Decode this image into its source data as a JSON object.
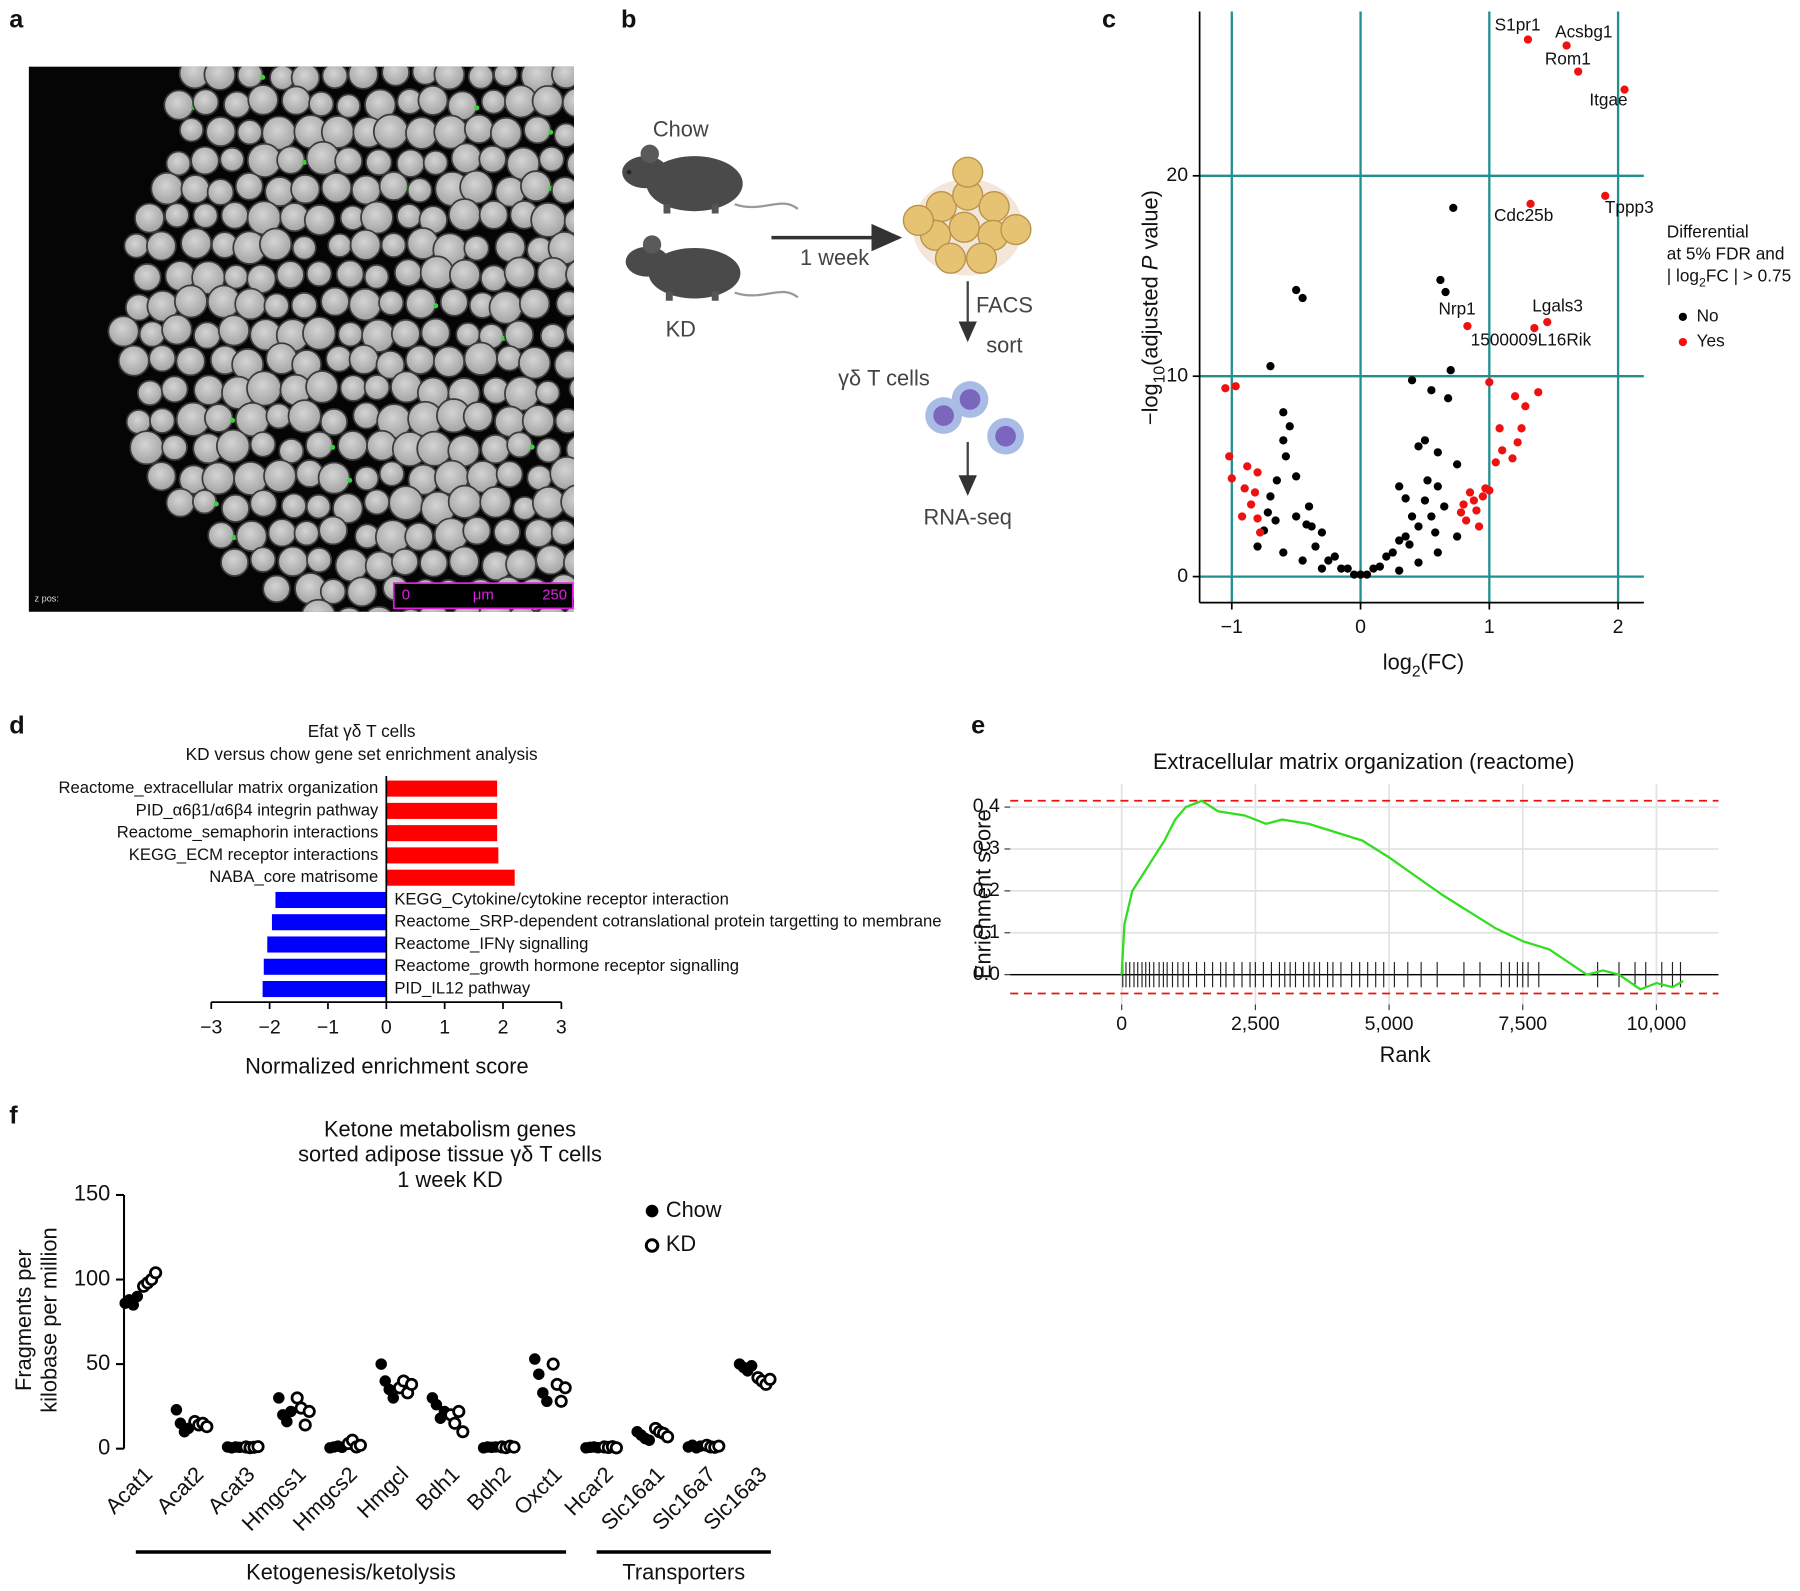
{
  "panel_labels": [
    "a",
    "b",
    "c",
    "d",
    "e",
    "f"
  ],
  "panel_a": {
    "scale_bar": [
      "0",
      "μm",
      "250"
    ],
    "z_pos": "z pos:"
  },
  "panel_b": {
    "groups": [
      "Chow",
      "KD"
    ],
    "duration": "1 week",
    "step": [
      "FACS",
      "sort"
    ],
    "cells": "γδ T cells",
    "readout": "RNA-seq"
  },
  "chart_data": [
    {
      "type": "scatter",
      "x_label": [
        "log",
        "2",
        "(FC)"
      ],
      "y_label": [
        "−log",
        "10",
        "(adjusted ",
        "P",
        " value)"
      ],
      "xlim": [
        -1.25,
        2.2
      ],
      "ylim": [
        -1.3,
        28.2
      ],
      "xticks": [
        {
          "value": -1,
          "label": "−1"
        },
        0,
        1,
        2
      ],
      "yticks": [
        0,
        10,
        20
      ],
      "grid": true,
      "grid_color": "#1f8f8f",
      "legend_title": [
        "Differential",
        "at 5% FDR and"
      ],
      "legend_title_math": [
        "| log",
        "2",
        "FC | > 0.75"
      ],
      "legend_position": "right",
      "series": [
        {
          "name": "No",
          "color": "#000000",
          "x": [
            -0.5,
            -0.45,
            -0.7,
            -0.6,
            -0.55,
            -0.6,
            -0.58,
            -0.5,
            -0.65,
            -0.7,
            -0.4,
            -0.3,
            -0.2,
            -0.1,
            0,
            0.1,
            0.2,
            0.3,
            0.4,
            0.5,
            0.6,
            -0.35,
            -0.25,
            -0.15,
            -0.05,
            0.05,
            0.15,
            0.25,
            0.35,
            0.45,
            0.55,
            0.65,
            0.72,
            0.62,
            0.66,
            0.7,
            0.68,
            0.55,
            0.4,
            0.45,
            0.5,
            0.3,
            0.35,
            0.6,
            0.52,
            0.75,
            -0.72,
            -0.5,
            -0.42,
            -0.38,
            0.38,
            0.58,
            -0.75,
            -0.66,
            -0.8,
            -0.6,
            -0.45,
            -0.3,
            0.3,
            0.45,
            0.6,
            0.75
          ],
          "y": [
            14.3,
            13.9,
            10.5,
            8.2,
            7.5,
            6.8,
            6,
            5,
            4.8,
            4,
            3.5,
            2.2,
            1,
            0.4,
            0.1,
            0.4,
            1,
            1.8,
            3,
            3.8,
            4.5,
            1.5,
            0.8,
            0.4,
            0.1,
            0.1,
            0.5,
            1.2,
            2,
            2.5,
            3,
            3.5,
            18.4,
            14.8,
            14.2,
            10.3,
            8.9,
            9.3,
            9.8,
            6.5,
            6.8,
            4.5,
            3.9,
            6.2,
            4.8,
            5.6,
            3.2,
            3,
            2.6,
            2.5,
            1.6,
            2.2,
            2.3,
            2.8,
            1.5,
            1.2,
            0.8,
            0.4,
            0.3,
            0.7,
            1.2,
            2
          ]
        },
        {
          "name": "Yes",
          "color": "#ee1111",
          "x": [
            -1.05,
            -0.97,
            -1.02,
            -1.0,
            -0.9,
            -0.85,
            -0.8,
            -0.78,
            -0.8,
            -0.92,
            -0.88,
            -0.82,
            0.8,
            0.85,
            0.9,
            0.95,
            1.0,
            0.82,
            0.88,
            1.05,
            1.1,
            1.08,
            1.0,
            1.2,
            1.28,
            1.38,
            1.25,
            1.22,
            1.18,
            0.92,
            0.78,
            0.97,
            1.3,
            1.6,
            1.69,
            2.05,
            1.32,
            1.9,
            0.83,
            1.45,
            1.35
          ],
          "y": [
            9.4,
            9.5,
            6,
            4.9,
            4.4,
            3.6,
            2.9,
            2.2,
            5.2,
            3,
            5.5,
            4.2,
            3.6,
            4.2,
            3.3,
            4,
            4.3,
            2.8,
            3.8,
            5.7,
            6.3,
            7.4,
            9.7,
            9,
            8.5,
            9.2,
            7.4,
            6.7,
            5.9,
            2.5,
            3.2,
            4.4,
            26.8,
            26.5,
            25.2,
            24.3,
            18.6,
            19,
            12.5,
            12.7,
            12.4
          ],
          "labels": [
            null,
            null,
            null,
            null,
            null,
            null,
            null,
            null,
            null,
            null,
            null,
            null,
            null,
            null,
            null,
            null,
            null,
            null,
            null,
            null,
            null,
            null,
            null,
            null,
            null,
            null,
            null,
            null,
            null,
            null,
            null,
            null,
            "S1pr1",
            "Acsbg1",
            "Rom1",
            "Itgae",
            "Cdc25b",
            "Tppp3",
            "Nrp1",
            "Lgals3",
            "1500009L16Rik"
          ]
        }
      ]
    },
    {
      "type": "barh",
      "title": [
        "Efat γδ T cells",
        "KD versus chow gene set enrichment analysis"
      ],
      "categories": [
        "Reactome_extracellular matrix organization",
        "PID_α6β1/α6β4 integrin pathway",
        "Reactome_semaphorin interactions",
        "KEGG_ECM receptor interactions",
        "NABA_core matrisome",
        "KEGG_Cytokine/cytokine receptor interaction",
        "Reactome_SRP-dependent cotranslational protein targetting to membrane",
        "Reactome_IFNγ signalling",
        "Reactome_growth hormone receptor signalling",
        "PID_IL12 pathway"
      ],
      "values": [
        1.9,
        1.9,
        1.9,
        1.92,
        2.2,
        -1.9,
        -1.96,
        -2.04,
        -2.1,
        -2.12
      ],
      "colors": {
        "positive": "#ff0000",
        "negative": "#0000ff"
      },
      "xlim": [
        -3,
        3
      ],
      "xticks": [
        {
          "value": -3,
          "label": "−3"
        },
        {
          "value": -2,
          "label": "−2"
        },
        {
          "value": -1,
          "label": "−1"
        },
        0,
        1,
        2,
        3
      ],
      "x_label": "Normalized enrichment score"
    },
    {
      "type": "line",
      "title": "Extracellular matrix organization (reactome)",
      "x_label": "Rank",
      "y_label": "Enrichment score",
      "x": [
        0,
        50,
        200,
        500,
        800,
        1000,
        1200,
        1500,
        1800,
        2300,
        2700,
        3000,
        3500,
        4000,
        4500,
        5000,
        6000,
        7000,
        7500,
        8000,
        8700,
        9000,
        9300,
        9700,
        10000,
        10300,
        10500
      ],
      "values": [
        0,
        0.12,
        0.2,
        0.26,
        0.32,
        0.37,
        0.4,
        0.415,
        0.39,
        0.38,
        0.36,
        0.37,
        0.36,
        0.34,
        0.32,
        0.28,
        0.19,
        0.11,
        0.08,
        0.06,
        0,
        0.01,
        0,
        -0.035,
        -0.02,
        -0.03,
        -0.015
      ],
      "color": "#33dd22",
      "xlim": [
        -2085,
        11160
      ],
      "ylim": [
        -0.071,
        0.455
      ],
      "xticks": [
        0,
        {
          "value": 2500,
          "label": "2,500"
        },
        {
          "value": 5000,
          "label": "5,000"
        },
        {
          "value": 7500,
          "label": "7,500"
        },
        {
          "value": 10000,
          "label": "10,000"
        }
      ],
      "yticks": [
        {
          "value": 0,
          "label": "0.0"
        },
        0.1,
        0.2,
        0.3,
        0.4
      ],
      "grid": true,
      "dashed_lines": [
        0.415,
        -0.045
      ],
      "dashed_color": "#ee1111",
      "hits": [
        20,
        80,
        150,
        230,
        300,
        380,
        450,
        520,
        600,
        700,
        780,
        850,
        950,
        1050,
        1150,
        1250,
        1400,
        1550,
        1700,
        1850,
        1950,
        2100,
        2250,
        2400,
        2500,
        2650,
        2800,
        2950,
        3050,
        3150,
        3250,
        3400,
        3500,
        3600,
        3700,
        3850,
        3950,
        4100,
        4300,
        4450,
        4600,
        4750,
        4900,
        5100,
        5350,
        5600,
        5900,
        6400,
        6700,
        7100,
        7250,
        7400,
        7500,
        7600,
        7800,
        8900,
        9300,
        9600,
        9800,
        10100,
        10300,
        10450
      ]
    },
    {
      "type": "dot",
      "title": [
        "Ketone metabolism genes",
        "sorted adipose tissue γδ T cells",
        "1 week KD"
      ],
      "y_label": [
        "Fragments per",
        "kilobase per million"
      ],
      "ylim": [
        0,
        150
      ],
      "yticks": [
        0,
        50,
        100,
        150
      ],
      "groups": [
        {
          "label": "Ketogenesis/ketolysis",
          "categories": [
            "Acat1",
            "Acat2",
            "Acat3",
            "Hmgcs1",
            "Hmgcs2",
            "Hmgcl",
            "Bdh1",
            "Bdh2",
            "Oxct1"
          ]
        },
        {
          "label": "Transporters",
          "categories": [
            "Hcar2",
            "Slc16a1",
            "Slc16a7",
            "Slc16a3"
          ]
        }
      ],
      "legend_position": "top right",
      "series": [
        {
          "name": "Chow",
          "marker": "filled",
          "color": "#000000",
          "values": [
            [
              86,
              88,
              85,
              90
            ],
            [
              23,
              15,
              10,
              12
            ],
            [
              1,
              0.5,
              1,
              0.8
            ],
            [
              30,
              20,
              16,
              22
            ],
            [
              0.5,
              1,
              1.5,
              0.8
            ],
            [
              50,
              40,
              35,
              30
            ],
            [
              30,
              26,
              18,
              22
            ],
            [
              0.5,
              1,
              0.8,
              1
            ],
            [
              53,
              44,
              33,
              28
            ],
            [
              0.5,
              0.8,
              1,
              0.6
            ],
            [
              10,
              8,
              6,
              5
            ],
            [
              1,
              2,
              0.5,
              1.5
            ],
            [
              50,
              48,
              46,
              49
            ]
          ]
        },
        {
          "name": "KD",
          "marker": "open",
          "color": "#000000",
          "values": [
            [
              96,
              98,
              100,
              104
            ],
            [
              16,
              14,
              15,
              13
            ],
            [
              1,
              0.6,
              0.8,
              1.2
            ],
            [
              30,
              24,
              14,
              22
            ],
            [
              3,
              5,
              1,
              2
            ],
            [
              36,
              40,
              33,
              38
            ],
            [
              20,
              15,
              22,
              10
            ],
            [
              1,
              0.6,
              1.5,
              0.9
            ],
            [
              50,
              38,
              28,
              36
            ],
            [
              1,
              0.7,
              1.2,
              0.5
            ],
            [
              12,
              10,
              9,
              7
            ],
            [
              2,
              1,
              0.8,
              1.5
            ],
            [
              42,
              40,
              38,
              41
            ]
          ]
        }
      ]
    }
  ]
}
